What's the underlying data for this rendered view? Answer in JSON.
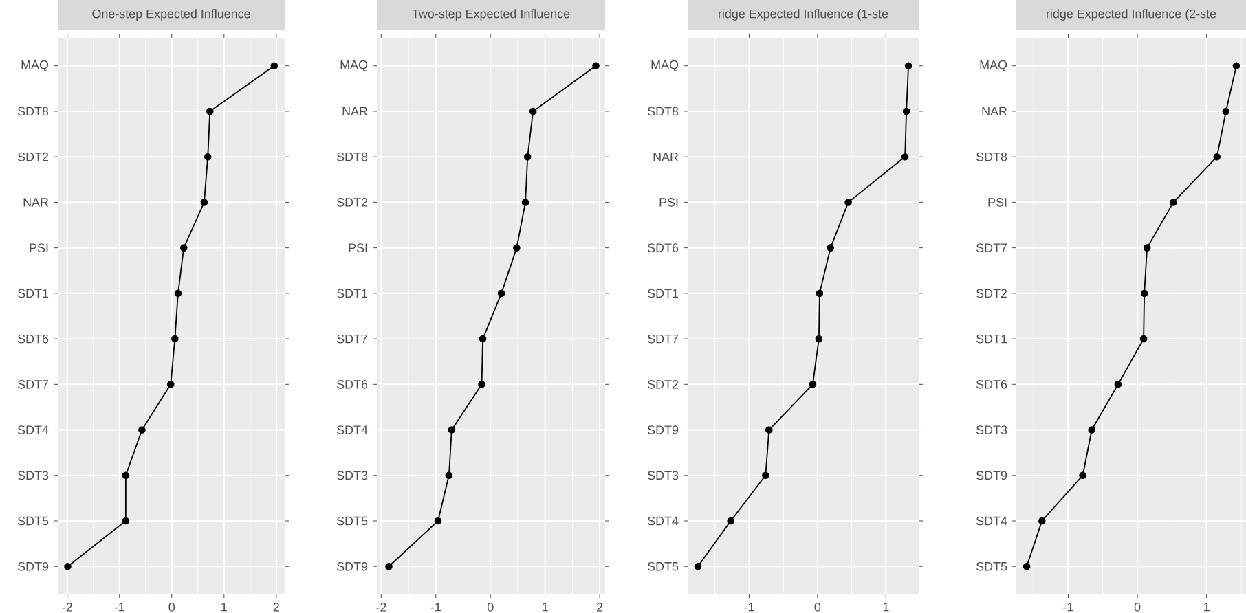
{
  "chart_data": [
    {
      "type": "line",
      "orientation": "horizontal",
      "title": "One-step Expected Influence",
      "categories": [
        "MAQ",
        "SDT8",
        "SDT2",
        "NAR",
        "PSI",
        "SDT1",
        "SDT6",
        "SDT7",
        "SDT4",
        "SDT3",
        "SDT5",
        "SDT9"
      ],
      "values": [
        1.96,
        0.73,
        0.69,
        0.62,
        0.23,
        0.12,
        0.06,
        -0.02,
        -0.57,
        -0.88,
        -0.88,
        -1.99
      ],
      "color": "#000000",
      "marker": "circle",
      "grid": true,
      "xlim": [
        -2.18,
        2.16
      ],
      "xticks": [
        -2,
        -1,
        0,
        1,
        2
      ]
    },
    {
      "type": "line",
      "orientation": "horizontal",
      "title": "Two-step Expected Influence",
      "categories": [
        "MAQ",
        "NAR",
        "SDT8",
        "SDT2",
        "PSI",
        "SDT1",
        "SDT7",
        "SDT6",
        "SDT4",
        "SDT3",
        "SDT5",
        "SDT9"
      ],
      "values": [
        1.93,
        0.78,
        0.68,
        0.64,
        0.48,
        0.2,
        -0.14,
        -0.16,
        -0.71,
        -0.76,
        -0.96,
        -1.86
      ],
      "color": "#000000",
      "marker": "circle",
      "grid": true,
      "xlim": [
        -2.08,
        2.1
      ],
      "xticks": [
        -2,
        -1,
        0,
        1,
        2
      ]
    },
    {
      "type": "line",
      "orientation": "horizontal",
      "title": "ridge Expected Influence (1-ste",
      "categories": [
        "MAQ",
        "SDT8",
        "NAR",
        "PSI",
        "SDT6",
        "SDT1",
        "SDT7",
        "SDT2",
        "SDT9",
        "SDT3",
        "SDT4",
        "SDT5"
      ],
      "values": [
        1.33,
        1.3,
        1.28,
        0.45,
        0.19,
        0.03,
        0.02,
        -0.07,
        -0.71,
        -0.76,
        -1.27,
        -1.75
      ],
      "color": "#000000",
      "marker": "circle",
      "grid": true,
      "xlim": [
        -1.9,
        1.48
      ],
      "xticks": [
        -1,
        0,
        1
      ]
    },
    {
      "type": "line",
      "orientation": "horizontal",
      "title": "ridge Expected Influence (2-ste",
      "categories": [
        "MAQ",
        "NAR",
        "SDT8",
        "PSI",
        "SDT7",
        "SDT2",
        "SDT1",
        "SDT6",
        "SDT3",
        "SDT9",
        "SDT4",
        "SDT5"
      ],
      "values": [
        1.43,
        1.28,
        1.15,
        0.52,
        0.14,
        0.1,
        0.09,
        -0.28,
        -0.66,
        -0.79,
        -1.38,
        -1.6
      ],
      "color": "#000000",
      "marker": "circle",
      "grid": true,
      "xlim": [
        -1.75,
        1.57
      ],
      "xticks": [
        -1,
        0,
        1
      ]
    }
  ]
}
